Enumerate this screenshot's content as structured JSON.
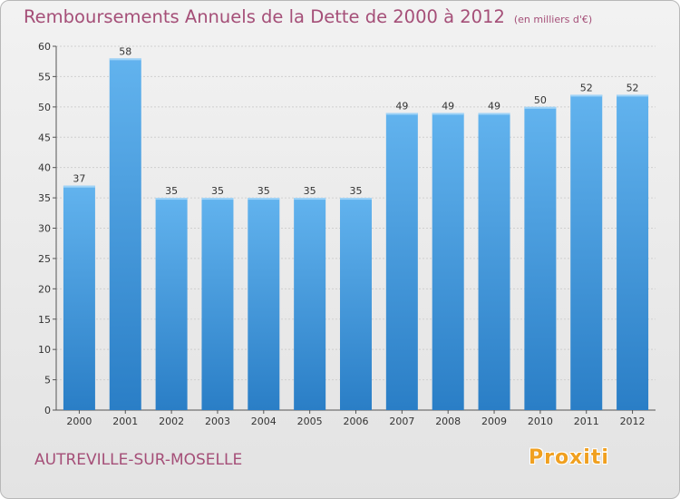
{
  "chart_data": {
    "type": "bar",
    "title": "Remboursements Annuels de la Dette de 2000 à 2012",
    "unit": "(en milliers d'€)",
    "categories": [
      "2000",
      "2001",
      "2002",
      "2003",
      "2004",
      "2005",
      "2006",
      "2007",
      "2008",
      "2009",
      "2010",
      "2011",
      "2012"
    ],
    "values": [
      37,
      58,
      35,
      35,
      35,
      35,
      35,
      49,
      49,
      49,
      50,
      52,
      52
    ],
    "ylim": [
      0,
      60
    ],
    "yticks": [
      0,
      5,
      10,
      15,
      20,
      25,
      30,
      35,
      40,
      45,
      50,
      55,
      60
    ],
    "grid": true,
    "bar_color": "#4f9fdc"
  },
  "footer": {
    "commune": "AUTREVILLE-SUR-MOSELLE",
    "brand": "Proxiti"
  }
}
